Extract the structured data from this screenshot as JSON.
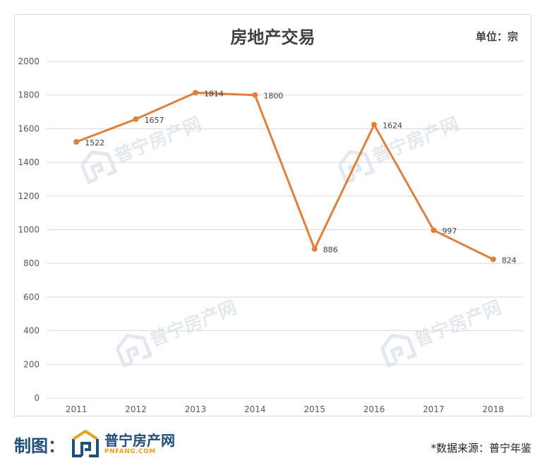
{
  "header": {
    "title": "房地产交易",
    "unit": "单位：宗"
  },
  "footer": {
    "made_by_label": "制图：",
    "logo_name": "普宁房产网",
    "logo_sub": "PNFANG.COM",
    "source": "*数据来源：普宁年鉴"
  },
  "watermark_text": "普宁房产网",
  "colors": {
    "series": "#e07f3a",
    "brand_blue": "#1f4e79",
    "brand_orange": "#e6a21a"
  },
  "chart_data": {
    "type": "line",
    "title": "房地产交易",
    "xlabel": "",
    "ylabel": "",
    "categories": [
      "2011",
      "2012",
      "2013",
      "2014",
      "2015",
      "2016",
      "2017",
      "2018"
    ],
    "series": [
      {
        "values": [
          1522,
          1657,
          1814,
          1800,
          886,
          1624,
          997,
          824
        ]
      }
    ],
    "ylim": [
      0,
      2000
    ],
    "yticks": [
      0,
      200,
      400,
      600,
      800,
      1000,
      1200,
      1400,
      1600,
      1800,
      2000
    ],
    "grid": true,
    "legend": "none",
    "data_labels": true
  }
}
